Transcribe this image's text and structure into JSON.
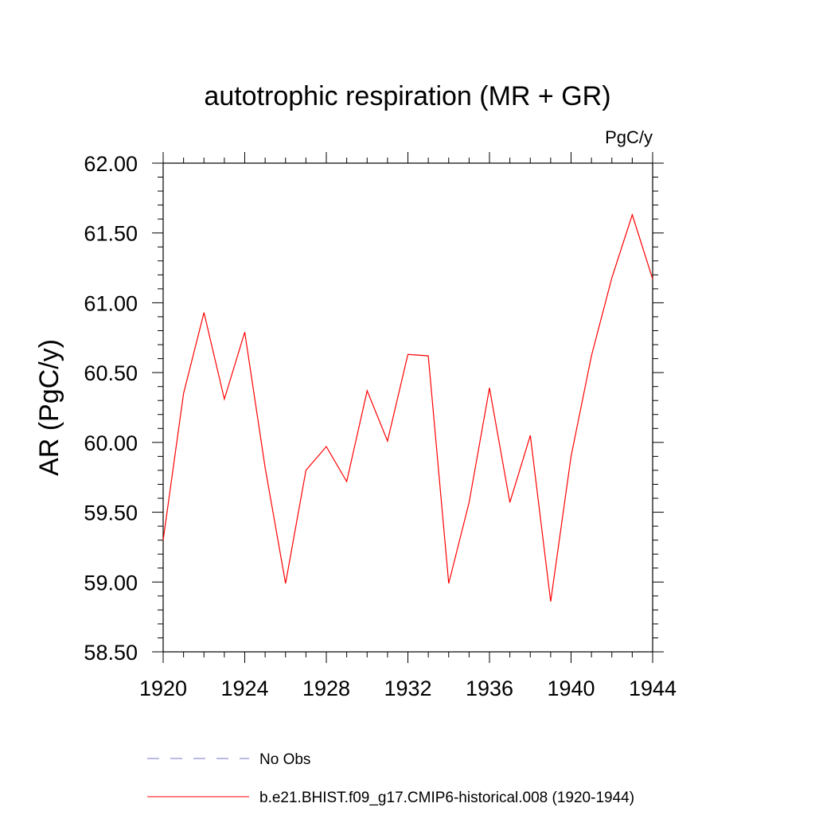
{
  "chart_data": {
    "type": "line",
    "title": "autotrophic respiration (MR + GR)",
    "units_label": "PgC/y",
    "ylabel": "AR  (PgC/y)",
    "xlabel": "",
    "xlim": [
      1920,
      1944
    ],
    "ylim": [
      58.5,
      62.0
    ],
    "x_ticks": [
      "1920",
      "1924",
      "1928",
      "1932",
      "1936",
      "1940",
      "1944"
    ],
    "y_ticks": [
      "58.50",
      "59.00",
      "59.50",
      "60.00",
      "60.50",
      "61.00",
      "61.50",
      "62.00"
    ],
    "grid": false,
    "legend_position": "bottom",
    "series": [
      {
        "name": "b.e21.BHIST.f09_g17.CMIP6-historical.008 (1920-1944)",
        "color": "#ff0000",
        "style": "solid",
        "x": [
          1920,
          1921,
          1922,
          1923,
          1924,
          1925,
          1926,
          1927,
          1928,
          1929,
          1930,
          1931,
          1932,
          1933,
          1934,
          1935,
          1936,
          1937,
          1938,
          1939,
          1940,
          1941,
          1942,
          1943,
          1944
        ],
        "y": [
          59.3,
          60.35,
          60.93,
          60.31,
          60.79,
          59.82,
          58.99,
          59.8,
          59.97,
          59.72,
          60.37,
          60.01,
          60.63,
          60.62,
          58.99,
          59.57,
          60.39,
          59.57,
          60.05,
          58.86,
          59.9,
          60.62,
          61.18,
          61.63,
          61.17
        ]
      }
    ],
    "legend_entries": [
      {
        "label": "No Obs",
        "color": "#7777cc",
        "style": "dashed"
      },
      {
        "label": "b.e21.BHIST.f09_g17.CMIP6-historical.008 (1920-1944)",
        "color": "#ff0000",
        "style": "solid"
      }
    ]
  }
}
